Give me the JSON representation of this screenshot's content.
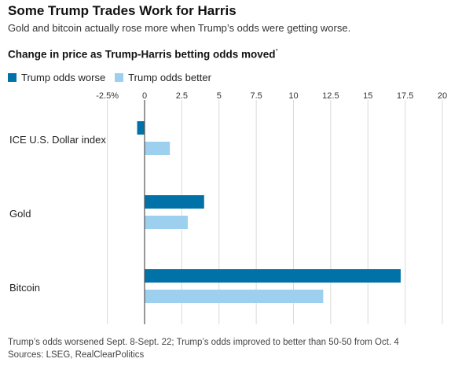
{
  "header": {
    "title": "Some Trump Trades Work for Harris",
    "subtitle": "Gold and bitcoin actually rose more when Trump’s odds were getting worse.",
    "chart_heading": "Change in price as Trump-Harris betting odds moved",
    "chart_heading_mark": "°"
  },
  "footer": {
    "note": "Trump’s odds worsened Sept. 8-Sept. 22; Trump’s odds improved to better than 50-50 from Oct. 4",
    "sources": "Sources: LSEG, RealClearPolitics"
  },
  "colors": {
    "worse": "#0072a8",
    "better": "#9dd0ef"
  },
  "chart_data": {
    "type": "bar",
    "orientation": "horizontal",
    "categories": [
      "ICE U.S. Dollar index",
      "Gold",
      "Bitcoin"
    ],
    "series": [
      {
        "name": "Trump odds worse",
        "values": [
          -0.5,
          4.0,
          17.2
        ]
      },
      {
        "name": "Trump odds better",
        "values": [
          1.7,
          2.9,
          12.0
        ]
      }
    ],
    "xlim": [
      -2.5,
      20
    ],
    "ticks": [
      "-2.5%",
      "0",
      "2.5",
      "5",
      "7.5",
      "10",
      "12.5",
      "15",
      "17.5",
      "20"
    ],
    "tick_values": [
      -2.5,
      0,
      2.5,
      5,
      7.5,
      10,
      12.5,
      15,
      17.5,
      20
    ],
    "grid": true,
    "legend_position": "top-left"
  }
}
